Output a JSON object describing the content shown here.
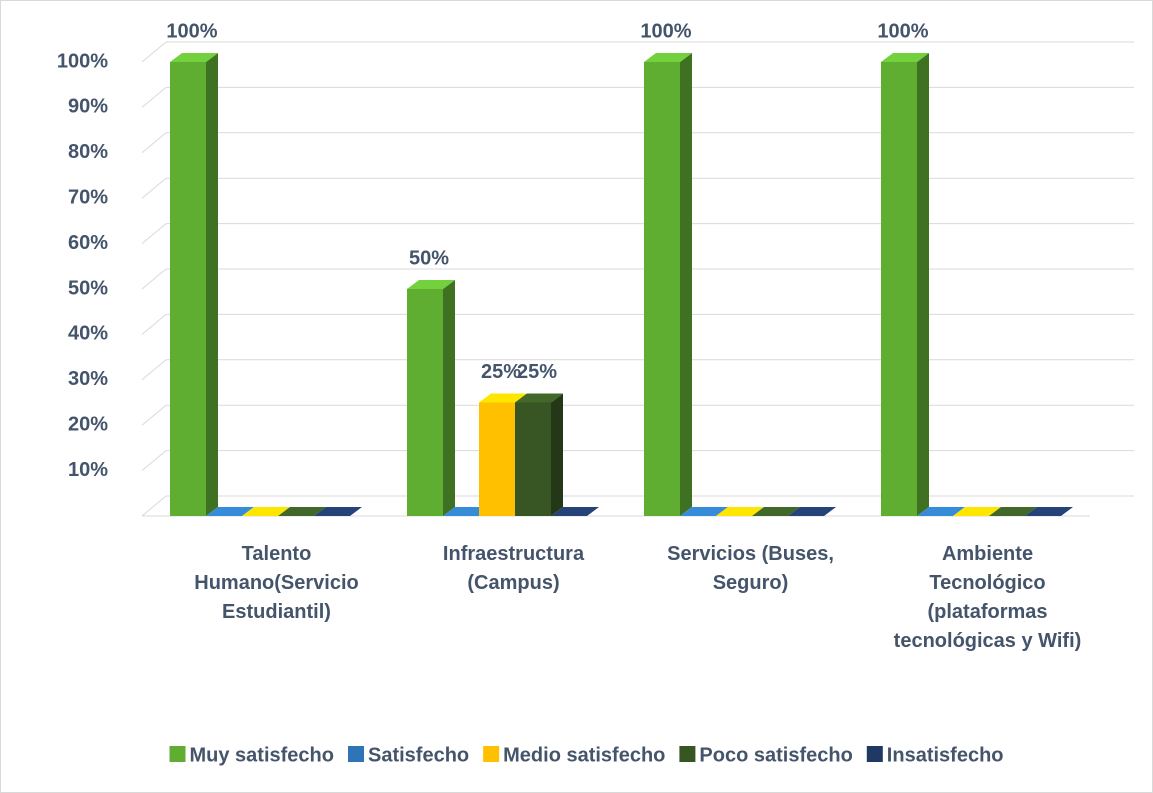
{
  "chart_data": {
    "type": "bar3d",
    "categories": [
      "Talento Humano(Servicio Estudiantil)",
      "Infraestructura (Campus)",
      "Servicios (Buses, Seguro)",
      "Ambiente Tecnológico (plataformas tecnológicas y Wifi)"
    ],
    "series": [
      {
        "name": "Muy satisfecho",
        "color": "#5fae32",
        "values": [
          100,
          50,
          100,
          100
        ],
        "value_labels": [
          "100%",
          "50%",
          "100%",
          "100%"
        ]
      },
      {
        "name": "Satisfecho",
        "color": "#2e75b6",
        "values": [
          0,
          0,
          0,
          0
        ],
        "value_labels": [
          null,
          null,
          null,
          null
        ]
      },
      {
        "name": "Medio satisfecho",
        "color": "#ffc000",
        "values": [
          0,
          25,
          0,
          0
        ],
        "value_labels": [
          null,
          "25%",
          null,
          null
        ]
      },
      {
        "name": "Poco satisfecho",
        "color": "#375623",
        "values": [
          0,
          25,
          0,
          0
        ],
        "value_labels": [
          null,
          "25%",
          null,
          null
        ]
      },
      {
        "name": "Insatisfecho",
        "color": "#1f3864",
        "values": [
          0,
          0,
          0,
          0
        ],
        "value_labels": [
          null,
          null,
          null,
          null
        ]
      }
    ],
    "ylim": [
      0,
      100
    ],
    "yticks": [
      {
        "value": 10,
        "label": "10%"
      },
      {
        "value": 20,
        "label": "20%"
      },
      {
        "value": 30,
        "label": "30%"
      },
      {
        "value": 40,
        "label": "40%"
      },
      {
        "value": 50,
        "label": "50%"
      },
      {
        "value": 60,
        "label": "60%"
      },
      {
        "value": 70,
        "label": "70%"
      },
      {
        "value": 80,
        "label": "80%"
      },
      {
        "value": 90,
        "label": "90%"
      },
      {
        "value": 100,
        "label": "100%"
      }
    ],
    "grid": true,
    "legend": "bottom"
  }
}
